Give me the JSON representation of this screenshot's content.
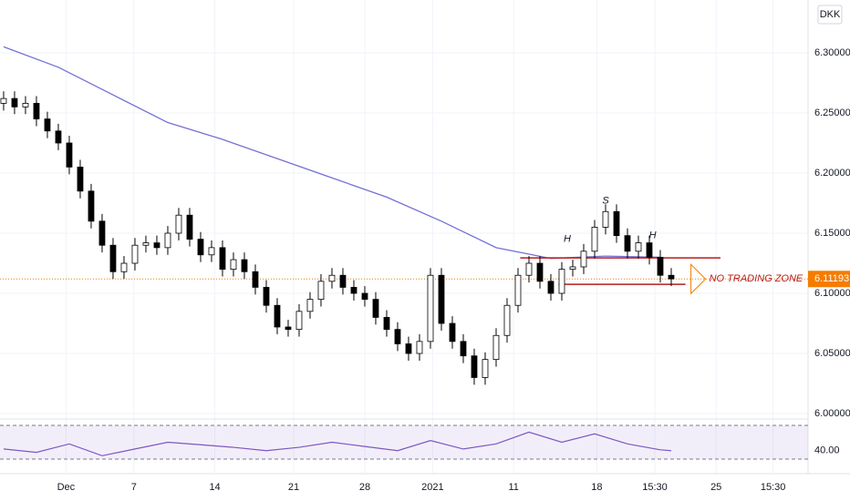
{
  "chart_data": [
    {
      "type": "candlestick",
      "currency": "DKK",
      "x": [
        0,
        1,
        2,
        3,
        4,
        5,
        6,
        7,
        8,
        9,
        10,
        11,
        12,
        13,
        14,
        15,
        16,
        17,
        18,
        19,
        20,
        21,
        22,
        23,
        24,
        25,
        26,
        27,
        28,
        29,
        30,
        31,
        32,
        33,
        34,
        35,
        36,
        37,
        38,
        39,
        40,
        41,
        42,
        43,
        44,
        45,
        46,
        47,
        48,
        49,
        50,
        51,
        52,
        53,
        54,
        55,
        56,
        57,
        58,
        59,
        60,
        61
      ],
      "open": [
        6.258,
        6.262,
        6.255,
        6.258,
        6.245,
        6.235,
        6.225,
        6.205,
        6.185,
        6.16,
        6.14,
        6.118,
        6.125,
        6.14,
        6.142,
        6.138,
        6.15,
        6.165,
        6.145,
        6.132,
        6.138,
        6.12,
        6.128,
        6.118,
        6.105,
        6.09,
        6.072,
        6.07,
        6.085,
        6.095,
        6.11,
        6.115,
        6.105,
        6.1,
        6.095,
        6.08,
        6.07,
        6.058,
        6.05,
        6.06,
        6.115,
        6.075,
        6.06,
        6.048,
        6.03,
        6.045,
        6.065,
        6.09,
        6.115,
        6.125,
        6.11,
        6.1,
        6.12,
        6.122,
        6.135,
        6.155,
        6.168,
        6.148,
        6.135,
        6.142,
        6.13,
        6.115
      ],
      "high": [
        6.268,
        6.268,
        6.264,
        6.264,
        6.251,
        6.241,
        6.231,
        6.211,
        6.191,
        6.166,
        6.146,
        6.131,
        6.146,
        6.148,
        6.148,
        6.156,
        6.171,
        6.171,
        6.151,
        6.144,
        6.144,
        6.134,
        6.134,
        6.124,
        6.111,
        6.096,
        6.078,
        6.091,
        6.101,
        6.116,
        6.121,
        6.121,
        6.111,
        6.106,
        6.101,
        6.086,
        6.076,
        6.064,
        6.066,
        6.121,
        6.121,
        6.081,
        6.066,
        6.054,
        6.051,
        6.071,
        6.096,
        6.121,
        6.131,
        6.131,
        6.116,
        6.126,
        6.128,
        6.141,
        6.161,
        6.174,
        6.174,
        6.154,
        6.148,
        6.148,
        6.136,
        6.121
      ],
      "low": [
        6.252,
        6.249,
        6.249,
        6.239,
        6.229,
        6.219,
        6.199,
        6.179,
        6.154,
        6.134,
        6.112,
        6.112,
        6.119,
        6.134,
        6.132,
        6.132,
        6.144,
        6.139,
        6.126,
        6.126,
        6.114,
        6.114,
        6.112,
        6.099,
        6.084,
        6.066,
        6.064,
        6.064,
        6.079,
        6.089,
        6.104,
        6.099,
        6.094,
        6.089,
        6.074,
        6.064,
        6.052,
        6.044,
        6.044,
        6.054,
        6.069,
        6.054,
        6.042,
        6.024,
        6.024,
        6.039,
        6.059,
        6.084,
        6.109,
        6.104,
        6.094,
        6.094,
        6.114,
        6.116,
        6.129,
        6.149,
        6.142,
        6.129,
        6.129,
        6.124,
        6.109,
        6.106
      ],
      "close": [
        6.262,
        6.255,
        6.258,
        6.245,
        6.235,
        6.225,
        6.205,
        6.185,
        6.16,
        6.14,
        6.118,
        6.125,
        6.14,
        6.142,
        6.138,
        6.15,
        6.165,
        6.145,
        6.132,
        6.138,
        6.12,
        6.128,
        6.118,
        6.105,
        6.09,
        6.072,
        6.07,
        6.085,
        6.095,
        6.11,
        6.115,
        6.105,
        6.1,
        6.095,
        6.08,
        6.07,
        6.058,
        6.05,
        6.06,
        6.115,
        6.075,
        6.06,
        6.048,
        6.03,
        6.045,
        6.065,
        6.09,
        6.115,
        6.125,
        6.11,
        6.1,
        6.12,
        6.122,
        6.135,
        6.155,
        6.168,
        6.148,
        6.135,
        6.142,
        6.13,
        6.115,
        6.112
      ],
      "up_color": "#ffffff",
      "down_color": "#000000",
      "xlim": [
        -0.33,
        73.5
      ],
      "xticks": [
        {
          "value": 5.7,
          "label": "Dec"
        },
        {
          "value": 11.9,
          "label": "7"
        },
        {
          "value": 19.3,
          "label": "14"
        },
        {
          "value": 26.5,
          "label": "21"
        },
        {
          "value": 33,
          "label": "28"
        },
        {
          "value": 39.2,
          "label": "2021"
        },
        {
          "value": 46.6,
          "label": "11"
        },
        {
          "value": 54.2,
          "label": "18"
        },
        {
          "value": 59.5,
          "label": "15:30"
        },
        {
          "value": 65.1,
          "label": "25"
        },
        {
          "value": 70.3,
          "label": "15:30"
        }
      ],
      "ylim": [
        5.9955,
        6.3439
      ],
      "yticks": [
        {
          "value": 6.0,
          "label": "6.00000"
        },
        {
          "value": 6.05,
          "label": "6.05000"
        },
        {
          "value": 6.1,
          "label": "6.10000"
        },
        {
          "value": 6.15,
          "label": "6.15000"
        },
        {
          "value": 6.2,
          "label": "6.20000"
        },
        {
          "value": 6.25,
          "label": "6.25000"
        },
        {
          "value": 6.3,
          "label": "6.30000"
        }
      ],
      "grid": true,
      "ma": {
        "color": "#7470d6",
        "x": [
          0,
          5,
          10,
          15,
          20,
          25,
          30,
          35,
          40,
          45,
          50,
          55,
          60
        ],
        "values": [
          6.305,
          6.288,
          6.265,
          6.242,
          6.228,
          6.212,
          6.196,
          6.18,
          6.16,
          6.138,
          6.129,
          6.131,
          6.13
        ]
      },
      "last_price": 6.11193,
      "last_price_color": "#f57c00",
      "annotations": [
        {
          "text": "H",
          "x": 51.5,
          "y": 6.145
        },
        {
          "text": "S",
          "x": 55,
          "y": 6.177
        },
        {
          "text": "H",
          "x": 59.3,
          "y": 6.148
        }
      ],
      "zone": {
        "label": "NO TRADING ZONE",
        "color": "#b71c1c",
        "top": 6.1295,
        "top_x": [
          47.2,
          65.5
        ],
        "bottom": 6.1075,
        "bottom_x": [
          50.7,
          62.3
        ]
      }
    },
    {
      "type": "line",
      "x": [
        0,
        3,
        6,
        9,
        12,
        15,
        18,
        21,
        24,
        27,
        30,
        33,
        36,
        39,
        42,
        45,
        48,
        51,
        54,
        57,
        60,
        61
      ],
      "values": [
        42,
        38,
        48,
        34,
        42,
        50,
        47,
        44,
        40,
        44,
        50,
        45,
        40,
        52,
        42,
        48,
        62,
        50,
        60,
        48,
        41,
        40
      ],
      "color": "#7e57c2",
      "ylim": [
        12.7,
        75.4
      ],
      "yticks": [
        {
          "value": 40,
          "label": "40.00"
        }
      ],
      "bands": [
        30,
        70
      ]
    }
  ]
}
